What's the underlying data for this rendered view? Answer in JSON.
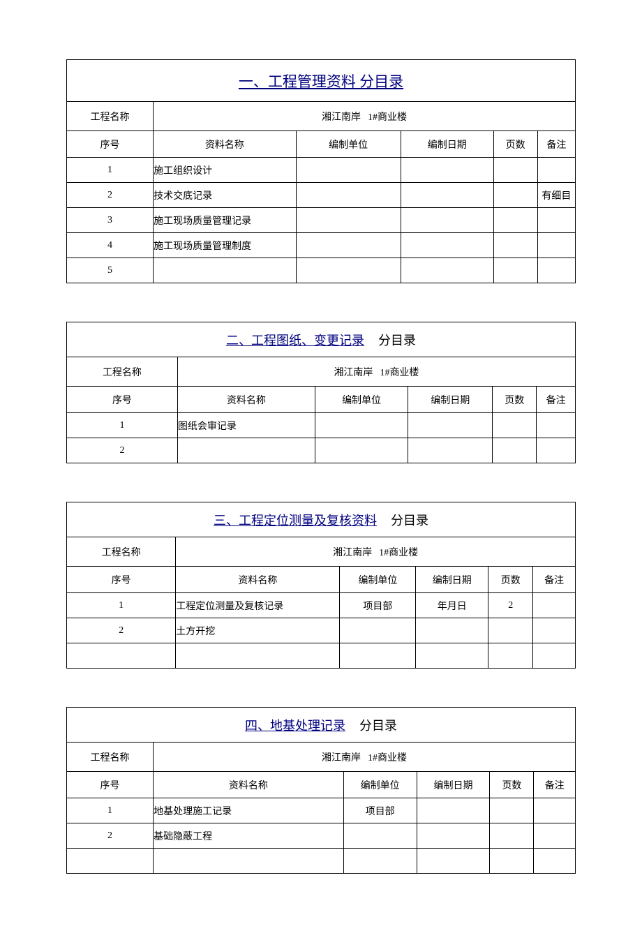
{
  "headers": {
    "seq": "序号",
    "name": "资料名称",
    "unit": "编制单位",
    "date": "编制日期",
    "pages": "页数",
    "notes": "备注"
  },
  "proj_label": "工程名称",
  "proj_prefix": "湘江南岸",
  "proj_suffix": "1#商业楼",
  "suffix_text": "分目录",
  "sections": [
    {
      "title_main": "一、工程管理资料 分目录",
      "title_suffix": "",
      "proj_label_width": "140",
      "big": true,
      "rows": [
        {
          "seq": "1",
          "name": "施工组织设计",
          "unit": "",
          "date": "",
          "pages": "",
          "notes": ""
        },
        {
          "seq": "2",
          "name": "技术交底记录",
          "unit": "",
          "date": "",
          "pages": "",
          "notes": "有细目"
        },
        {
          "seq": "3",
          "name": "施工现场质量管理记录",
          "unit": "",
          "date": "",
          "pages": "",
          "notes": ""
        },
        {
          "seq": "4",
          "name": "施工现场质量管理制度",
          "unit": "",
          "date": "",
          "pages": "",
          "notes": ""
        },
        {
          "seq": "5",
          "name": "",
          "unit": "",
          "date": "",
          "pages": "",
          "notes": ""
        }
      ]
    },
    {
      "title_main": "二、工程图纸、变更记录",
      "title_suffix": "分目录",
      "proj_label_width": "185",
      "big": false,
      "rows": [
        {
          "seq": "1",
          "name": "图纸会审记录",
          "unit": "",
          "date": "",
          "pages": "",
          "notes": ""
        },
        {
          "seq": "2",
          "name": "",
          "unit": "",
          "date": "",
          "pages": "",
          "notes": ""
        }
      ]
    },
    {
      "title_main": "三、工程定位测量及复核资料",
      "title_suffix": "分目录",
      "proj_label_width": "185",
      "big": false,
      "rows": [
        {
          "seq": "1",
          "name": "工程定位测量及复核记录",
          "unit": "项目部",
          "date": "年月日",
          "pages": "2",
          "notes": ""
        },
        {
          "seq": "2",
          "name": "土方开挖",
          "unit": "",
          "date": "",
          "pages": "",
          "notes": ""
        },
        {
          "seq": "",
          "name": "",
          "unit": "",
          "date": "",
          "pages": "",
          "notes": ""
        }
      ]
    },
    {
      "title_main": "四、地基处理记录",
      "title_suffix": "分目录",
      "proj_label_width": "140",
      "big": false,
      "rows": [
        {
          "seq": "1",
          "name": "地基处理施工记录",
          "unit": "项目部",
          "date": "",
          "pages": "",
          "notes": ""
        },
        {
          "seq": "2",
          "name": "基础隐蔽工程",
          "unit": "",
          "date": "",
          "pages": "",
          "notes": ""
        },
        {
          "seq": "",
          "name": "",
          "unit": "",
          "date": "",
          "pages": "",
          "notes": ""
        }
      ]
    }
  ]
}
